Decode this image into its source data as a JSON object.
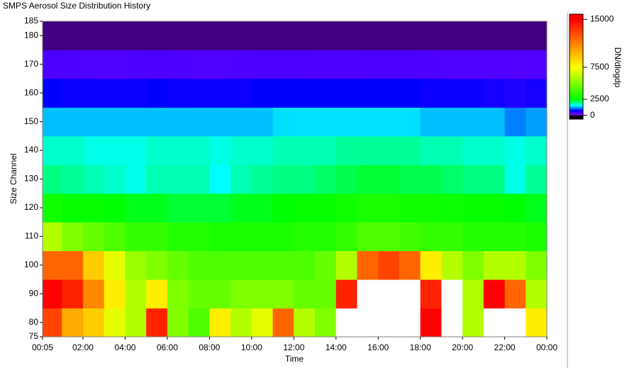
{
  "chart_data": {
    "type": "heatmap",
    "title": "SMPS Aerosol Size Distribution History",
    "xlabel": "Time",
    "ylabel": "Size Channel",
    "colorbar_label": "DN/dlogdp",
    "x_bins": [
      0.0833,
      1,
      2,
      3,
      4,
      5,
      6,
      7,
      8,
      9,
      10,
      11,
      12,
      13,
      14,
      15,
      16,
      17,
      18,
      19,
      20,
      21,
      22,
      23,
      24
    ],
    "y_bins": [
      75,
      85,
      95,
      105,
      115,
      125,
      135,
      145,
      155,
      165,
      175,
      185
    ],
    "z": [
      [
        13000,
        10000,
        9000,
        7000,
        6000,
        14000,
        5000,
        4000,
        8000,
        6000,
        7000,
        12000,
        6000,
        5000,
        17000,
        17000,
        17000,
        17000,
        15000,
        17000,
        6000,
        17000,
        17000,
        8000
      ],
      [
        15000,
        14000,
        11000,
        8000,
        6000,
        8000,
        5000,
        4500,
        4500,
        5000,
        5000,
        5000,
        4500,
        4500,
        14000,
        17000,
        17000,
        17000,
        14000,
        17000,
        6000,
        15000,
        12000,
        6000
      ],
      [
        12000,
        12000,
        9000,
        7000,
        5500,
        5000,
        4500,
        4000,
        4000,
        4000,
        4000,
        4000,
        4000,
        4500,
        6000,
        12000,
        13000,
        12000,
        8000,
        6000,
        5000,
        6000,
        6000,
        5000
      ],
      [
        6000,
        5000,
        4500,
        4000,
        3500,
        3500,
        3200,
        3200,
        3000,
        3000,
        3000,
        3000,
        3200,
        3200,
        3500,
        4000,
        4000,
        3800,
        3500,
        3500,
        3200,
        3200,
        3200,
        3000
      ],
      [
        2800,
        2600,
        2600,
        2500,
        2400,
        2400,
        2300,
        2300,
        2300,
        2400,
        2400,
        2500,
        2600,
        2600,
        2800,
        3000,
        3000,
        2800,
        2800,
        2700,
        2600,
        2600,
        2500,
        2400
      ],
      [
        2000,
        1900,
        1800,
        1700,
        1600,
        1800,
        1800,
        1800,
        1500,
        1800,
        1900,
        2000,
        2000,
        2100,
        2200,
        2300,
        2300,
        2200,
        2200,
        2100,
        2000,
        2000,
        1600,
        1900
      ],
      [
        1700,
        1700,
        1600,
        1600,
        1600,
        1700,
        1700,
        1700,
        1600,
        1700,
        1700,
        1800,
        1800,
        1800,
        1900,
        1900,
        1900,
        1900,
        1800,
        1800,
        1700,
        1700,
        1600,
        1700
      ],
      [
        1300,
        1300,
        1300,
        1300,
        1300,
        1300,
        1300,
        1300,
        1300,
        1300,
        1300,
        1400,
        1400,
        1400,
        1400,
        1400,
        1400,
        1400,
        1300,
        1300,
        1300,
        1300,
        1100,
        1200
      ],
      [
        700,
        650,
        650,
        650,
        650,
        700,
        650,
        650,
        650,
        650,
        700,
        700,
        700,
        700,
        700,
        700,
        700,
        700,
        650,
        650,
        650,
        600,
        550,
        600
      ],
      [
        350,
        340,
        330,
        330,
        340,
        350,
        340,
        330,
        330,
        340,
        350,
        350,
        350,
        340,
        340,
        350,
        350,
        350,
        340,
        330,
        330,
        320,
        310,
        320
      ],
      [
        0,
        0,
        0,
        0,
        0,
        0,
        0,
        0,
        0,
        0,
        0,
        0,
        0,
        0,
        0,
        0,
        0,
        0,
        0,
        0,
        0,
        0,
        0,
        0
      ]
    ],
    "xlim": [
      0.0833,
      24
    ],
    "xticks": [
      {
        "value": 0.0833,
        "label": "00:05"
      },
      {
        "value": 2,
        "label": "02:00"
      },
      {
        "value": 4,
        "label": "04:00"
      },
      {
        "value": 6,
        "label": "06:00"
      },
      {
        "value": 8,
        "label": "08:00"
      },
      {
        "value": 10,
        "label": "10:00"
      },
      {
        "value": 12,
        "label": "12:00"
      },
      {
        "value": 14,
        "label": "14:00"
      },
      {
        "value": 16,
        "label": "16:00"
      },
      {
        "value": 18,
        "label": "18:00"
      },
      {
        "value": 20,
        "label": "20:00"
      },
      {
        "value": 22,
        "label": "22:00"
      },
      {
        "value": 24,
        "label": "00:00"
      }
    ],
    "ylim": [
      75,
      185
    ],
    "yticks": [
      75,
      80,
      90,
      100,
      110,
      120,
      130,
      140,
      150,
      160,
      170,
      180,
      185
    ],
    "clim": [
      -600,
      15800
    ],
    "cticks": [
      0,
      2500,
      7500,
      15000
    ],
    "colorscale": [
      [
        -600,
        "#000000"
      ],
      [
        -100,
        "#000000"
      ],
      [
        100,
        "#8000ff"
      ],
      [
        700,
        "#0000ff"
      ],
      [
        1500,
        "#00ffff"
      ],
      [
        2500,
        "#00ff00"
      ],
      [
        7500,
        "#ffff00"
      ],
      [
        15000,
        "#ff0000"
      ],
      [
        15800,
        "#ff0000"
      ]
    ],
    "over_color": "#ffffff"
  }
}
